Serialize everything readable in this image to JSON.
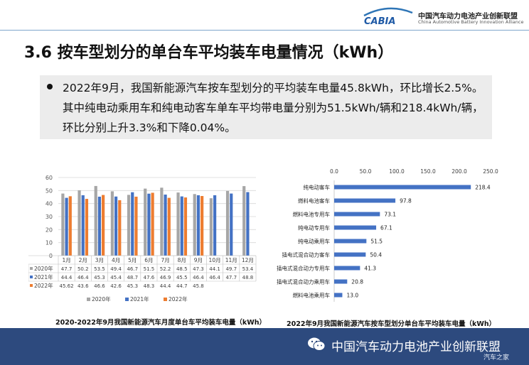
{
  "header": {
    "logo_text": "CABIA",
    "org_cn": "中国汽车动力电池产业创新联盟",
    "org_en": "China Automotive Battery Innovation Alliance"
  },
  "title": "3.6 按车型划分的单台车平均装车电量情况（kWh）",
  "callout": {
    "text": "2022年9月，我国新能源汽车按车型划分的平均装车电量45.8kWh，环比增长2.5%。其中纯电动乘用车和纯电动客车单车平均带电量分别为51.5kWh/辆和218.4kWh/辆，环比分别上升3.3%和下降0.04%。"
  },
  "chart_data": [
    {
      "type": "bar",
      "title": "2020-2022年9月我国新能源汽车月度单台车平均装车电量（kWh）",
      "categories": [
        "1月",
        "2月",
        "3月",
        "4月",
        "5月",
        "6月",
        "7月",
        "8月",
        "9月",
        "10月",
        "11月",
        "12月"
      ],
      "ylim": [
        0,
        60
      ],
      "yticks": [
        "0",
        "10",
        "20",
        "30",
        "40",
        "50",
        "60"
      ],
      "series": [
        {
          "name": "2020年",
          "color": "#a6a6a6",
          "values": [
            47.7,
            50.2,
            53.5,
            49.4,
            46.7,
            51.5,
            52.2,
            48.5,
            47.3,
            44.1,
            49.7,
            53.4
          ],
          "labels": [
            "47.7",
            "50.2",
            "53.5",
            "49.4",
            "46.7",
            "51.5",
            "52.2",
            "48.5",
            "47.3",
            "44.1",
            "49.7",
            "53.4"
          ]
        },
        {
          "name": "2021年",
          "color": "#4472c4",
          "values": [
            44.4,
            46.4,
            45.3,
            45.4,
            48.7,
            47.6,
            46.9,
            45.5,
            46.4,
            46.4,
            47.7,
            48.8
          ],
          "labels": [
            "44.4",
            "46.4",
            "45.3",
            "45.4",
            "48.7",
            "47.6",
            "46.9",
            "45.5",
            "46.4",
            "46.4",
            "47.7",
            "48.8"
          ]
        },
        {
          "name": "2022年",
          "color": "#ed7d31",
          "values": [
            45.62,
            43.6,
            46.6,
            42.6,
            45.3,
            48.3,
            44.4,
            44.7,
            45.8,
            null,
            null,
            null
          ],
          "labels": [
            "45.62",
            "43.6",
            "46.6",
            "42.6",
            "45.3",
            "48.3",
            "44.4",
            "44.7",
            "45.8",
            "",
            "",
            ""
          ]
        }
      ],
      "legend": "bottom",
      "grid": true
    },
    {
      "type": "bar",
      "orientation": "horizontal",
      "title": "2022年9月我国新能源汽车按车型划分单台车平均装车电量（kWh）",
      "categories": [
        "纯电动客车",
        "燃料电池客车",
        "燃料电池专用车",
        "纯电动专用车",
        "纯电动乘用车",
        "插电式混合动力客车",
        "插电式混合动力专用车",
        "插电式混合动力乘用车",
        "燃料电池乘用车"
      ],
      "values": [
        218.4,
        97.8,
        73.1,
        67.1,
        51.5,
        50.4,
        41.3,
        20.8,
        13.0
      ],
      "labels": [
        "218.4",
        "97.8",
        "73.1",
        "67.1",
        "51.5",
        "50.4",
        "41.3",
        "20.8",
        "13.0"
      ],
      "xlim": [
        0,
        250
      ],
      "xticks": [
        "0.0",
        "50.0",
        "100.0",
        "150.0",
        "200.0",
        "250.0"
      ],
      "color": "#4472c4"
    }
  ],
  "footer": {
    "text": "中国汽车动力电池产业创新联盟",
    "watermark": "汽车之家"
  },
  "colors": {
    "footer_bg": "#2d4a7e",
    "accent_blue": "#4472c4",
    "accent_orange": "#ed7d31",
    "accent_gray": "#a6a6a6"
  }
}
